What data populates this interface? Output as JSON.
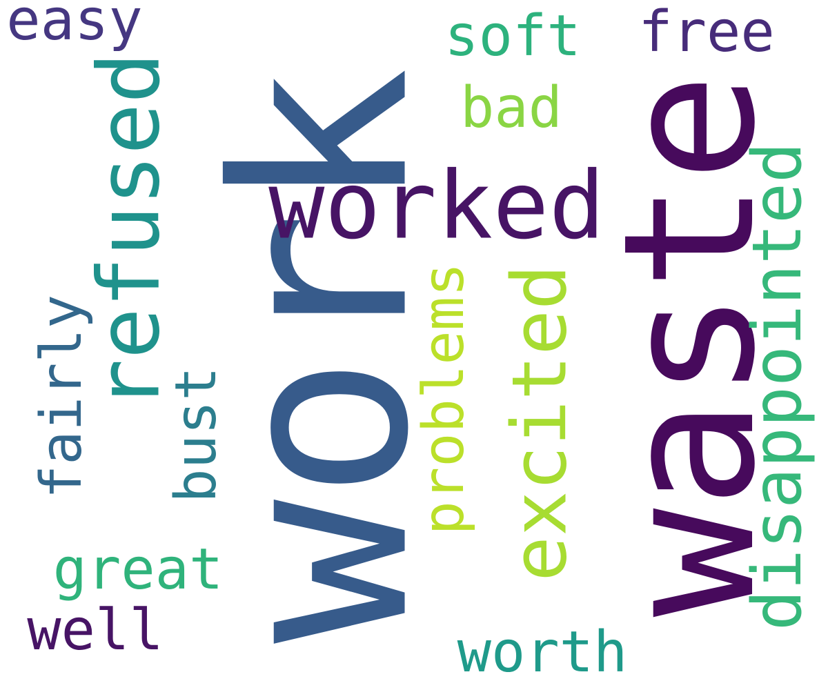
{
  "words": [
    {
      "key": "work",
      "text": "work",
      "color": "#375b8b"
    },
    {
      "key": "waste",
      "text": "waste",
      "color": "#470a5c"
    },
    {
      "key": "worked",
      "text": "worked",
      "color": "#471465"
    },
    {
      "key": "refused",
      "text": "refused",
      "color": "#1f928c"
    },
    {
      "key": "excited",
      "text": "excited",
      "color": "#a7dc32"
    },
    {
      "key": "disappointed",
      "text": "disappointed",
      "color": "#36b87a"
    },
    {
      "key": "problems",
      "text": "problems",
      "color": "#bbe02a"
    },
    {
      "key": "bust",
      "text": "bust",
      "color": "#2c7e8e"
    },
    {
      "key": "fairly",
      "text": "fairly",
      "color": "#33678c"
    },
    {
      "key": "great",
      "text": "great",
      "color": "#2fb37b"
    },
    {
      "key": "well",
      "text": "well",
      "color": "#471465"
    },
    {
      "key": "worth",
      "text": "worth",
      "color": "#1f9a8a"
    },
    {
      "key": "bad",
      "text": "bad",
      "color": "#8ad544"
    },
    {
      "key": "soft",
      "text": "soft",
      "color": "#2db27d"
    },
    {
      "key": "free",
      "text": "free",
      "color": "#472c7a"
    },
    {
      "key": "easy",
      "text": "easy",
      "color": "#453781"
    }
  ]
}
